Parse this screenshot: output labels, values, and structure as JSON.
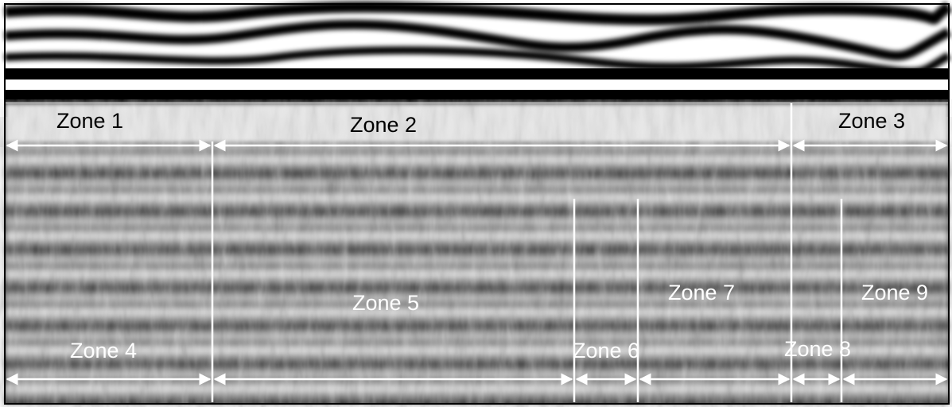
{
  "zones": [
    "Zone 1",
    "Zone 2",
    "Zone 3",
    "Zone 4",
    "Zone 5",
    "Zone 6",
    "Zone 7",
    "Zone 8",
    "Zone 9"
  ]
}
